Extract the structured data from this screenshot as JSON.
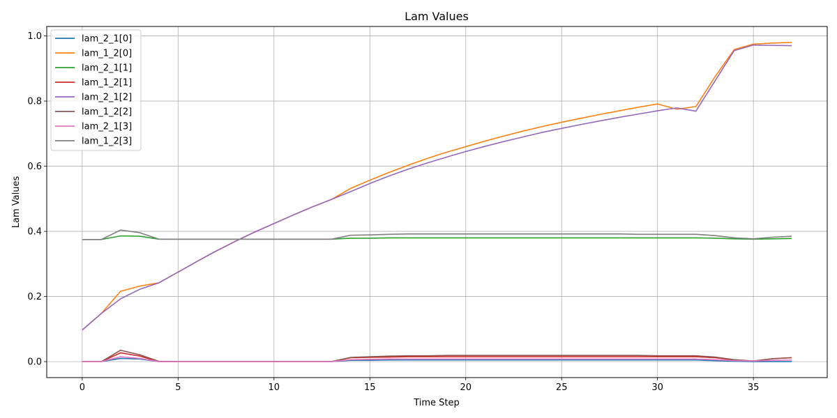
{
  "chart_data": {
    "type": "line",
    "title": "Lam Values",
    "xlabel": "Time Step",
    "ylabel": "Lam Values",
    "xlim": [
      -1.85,
      38.85
    ],
    "ylim": [
      -0.049,
      1.029
    ],
    "xticks": [
      0,
      5,
      10,
      15,
      20,
      25,
      30,
      35
    ],
    "yticks": [
      0.0,
      0.2,
      0.4,
      0.6,
      0.8,
      1.0
    ],
    "xtick_labels": [
      "0",
      "5",
      "10",
      "15",
      "20",
      "25",
      "30",
      "35"
    ],
    "ytick_labels": [
      "0.0",
      "0.2",
      "0.4",
      "0.6",
      "0.8",
      "1.0"
    ],
    "grid": true,
    "legend_position": "top-left",
    "x": [
      0,
      1,
      2,
      3,
      4,
      5,
      6,
      7,
      8,
      9,
      10,
      11,
      12,
      13,
      14,
      15,
      16,
      17,
      18,
      19,
      20,
      21,
      22,
      23,
      24,
      25,
      26,
      27,
      28,
      29,
      30,
      31,
      32,
      33,
      34,
      35,
      36,
      37
    ],
    "series": [
      {
        "name": "lam_2_1[0]",
        "color": "#1f77b4",
        "values": [
          0,
          0,
          0.01,
          0.008,
          0,
          0,
          0,
          0,
          0,
          0,
          0,
          0,
          0,
          0,
          0.004,
          0.004,
          0.005,
          0.005,
          0.005,
          0.005,
          0.005,
          0.005,
          0.005,
          0.005,
          0.005,
          0.005,
          0.005,
          0.005,
          0.005,
          0.005,
          0.005,
          0.005,
          0.005,
          0.003,
          0.001,
          0,
          0,
          0
        ]
      },
      {
        "name": "lam_1_2[0]",
        "color": "#ff7f0e",
        "values": [
          0.097,
          0.148,
          0.216,
          0.232,
          0.242,
          0.275,
          0.308,
          0.34,
          0.37,
          0.398,
          0.424,
          0.45,
          0.475,
          0.498,
          0.532,
          0.557,
          0.581,
          0.603,
          0.624,
          0.643,
          0.66,
          0.677,
          0.693,
          0.708,
          0.722,
          0.735,
          0.747,
          0.759,
          0.77,
          0.781,
          0.791,
          0.775,
          0.783,
          0.875,
          0.958,
          0.975,
          0.978,
          0.98
        ]
      },
      {
        "name": "lam_2_1[1]",
        "color": "#2ca02c",
        "values": [
          0.375,
          0.375,
          0.386,
          0.385,
          0.376,
          0.376,
          0.376,
          0.376,
          0.376,
          0.376,
          0.376,
          0.376,
          0.376,
          0.376,
          0.379,
          0.379,
          0.38,
          0.38,
          0.38,
          0.38,
          0.38,
          0.38,
          0.38,
          0.38,
          0.38,
          0.38,
          0.38,
          0.38,
          0.38,
          0.38,
          0.38,
          0.38,
          0.38,
          0.379,
          0.377,
          0.376,
          0.377,
          0.378
        ]
      },
      {
        "name": "lam_1_2[1]",
        "color": "#d62728",
        "values": [
          0,
          0,
          0.027,
          0.017,
          0,
          0,
          0,
          0,
          0,
          0,
          0,
          0,
          0,
          0,
          0.012,
          0.013,
          0.014,
          0.015,
          0.015,
          0.015,
          0.015,
          0.015,
          0.015,
          0.015,
          0.015,
          0.015,
          0.015,
          0.015,
          0.015,
          0.015,
          0.015,
          0.015,
          0.015,
          0.012,
          0.005,
          0.002,
          0.009,
          0.012
        ]
      },
      {
        "name": "lam_2_1[2]",
        "color": "#9467bd",
        "values": [
          0.097,
          0.148,
          0.193,
          0.222,
          0.242,
          0.275,
          0.308,
          0.34,
          0.37,
          0.398,
          0.424,
          0.45,
          0.475,
          0.498,
          0.522,
          0.547,
          0.57,
          0.591,
          0.61,
          0.628,
          0.645,
          0.661,
          0.676,
          0.69,
          0.704,
          0.716,
          0.728,
          0.739,
          0.75,
          0.76,
          0.77,
          0.779,
          0.769,
          0.862,
          0.955,
          0.972,
          0.971,
          0.97
        ]
      },
      {
        "name": "lam_1_2[2]",
        "color": "#8c564b",
        "values": [
          0,
          0,
          0.035,
          0.021,
          0.001,
          0,
          0,
          0,
          0,
          0,
          0,
          0,
          0,
          0,
          0.013,
          0.015,
          0.017,
          0.018,
          0.018,
          0.019,
          0.019,
          0.019,
          0.019,
          0.019,
          0.019,
          0.019,
          0.019,
          0.019,
          0.019,
          0.019,
          0.018,
          0.018,
          0.018,
          0.014,
          0.006,
          0.002,
          0.009,
          0.012
        ]
      },
      {
        "name": "lam_2_1[3]",
        "color": "#e377c2",
        "values": [
          0,
          0,
          0.015,
          0.01,
          0,
          0,
          0,
          0,
          0,
          0,
          0,
          0,
          0,
          0,
          0.006,
          0.007,
          0.008,
          0.008,
          0.008,
          0.008,
          0.008,
          0.008,
          0.008,
          0.008,
          0.008,
          0.008,
          0.008,
          0.008,
          0.008,
          0.008,
          0.008,
          0.008,
          0.008,
          0.006,
          0.003,
          0.002,
          0.004,
          0.005
        ]
      },
      {
        "name": "lam_1_2[3]",
        "color": "#7f7f7f",
        "values": [
          0.375,
          0.375,
          0.404,
          0.396,
          0.376,
          0.376,
          0.376,
          0.376,
          0.376,
          0.376,
          0.376,
          0.376,
          0.376,
          0.376,
          0.388,
          0.389,
          0.391,
          0.392,
          0.392,
          0.392,
          0.392,
          0.392,
          0.392,
          0.392,
          0.392,
          0.392,
          0.392,
          0.392,
          0.392,
          0.391,
          0.391,
          0.391,
          0.391,
          0.387,
          0.38,
          0.377,
          0.382,
          0.385
        ]
      }
    ]
  }
}
